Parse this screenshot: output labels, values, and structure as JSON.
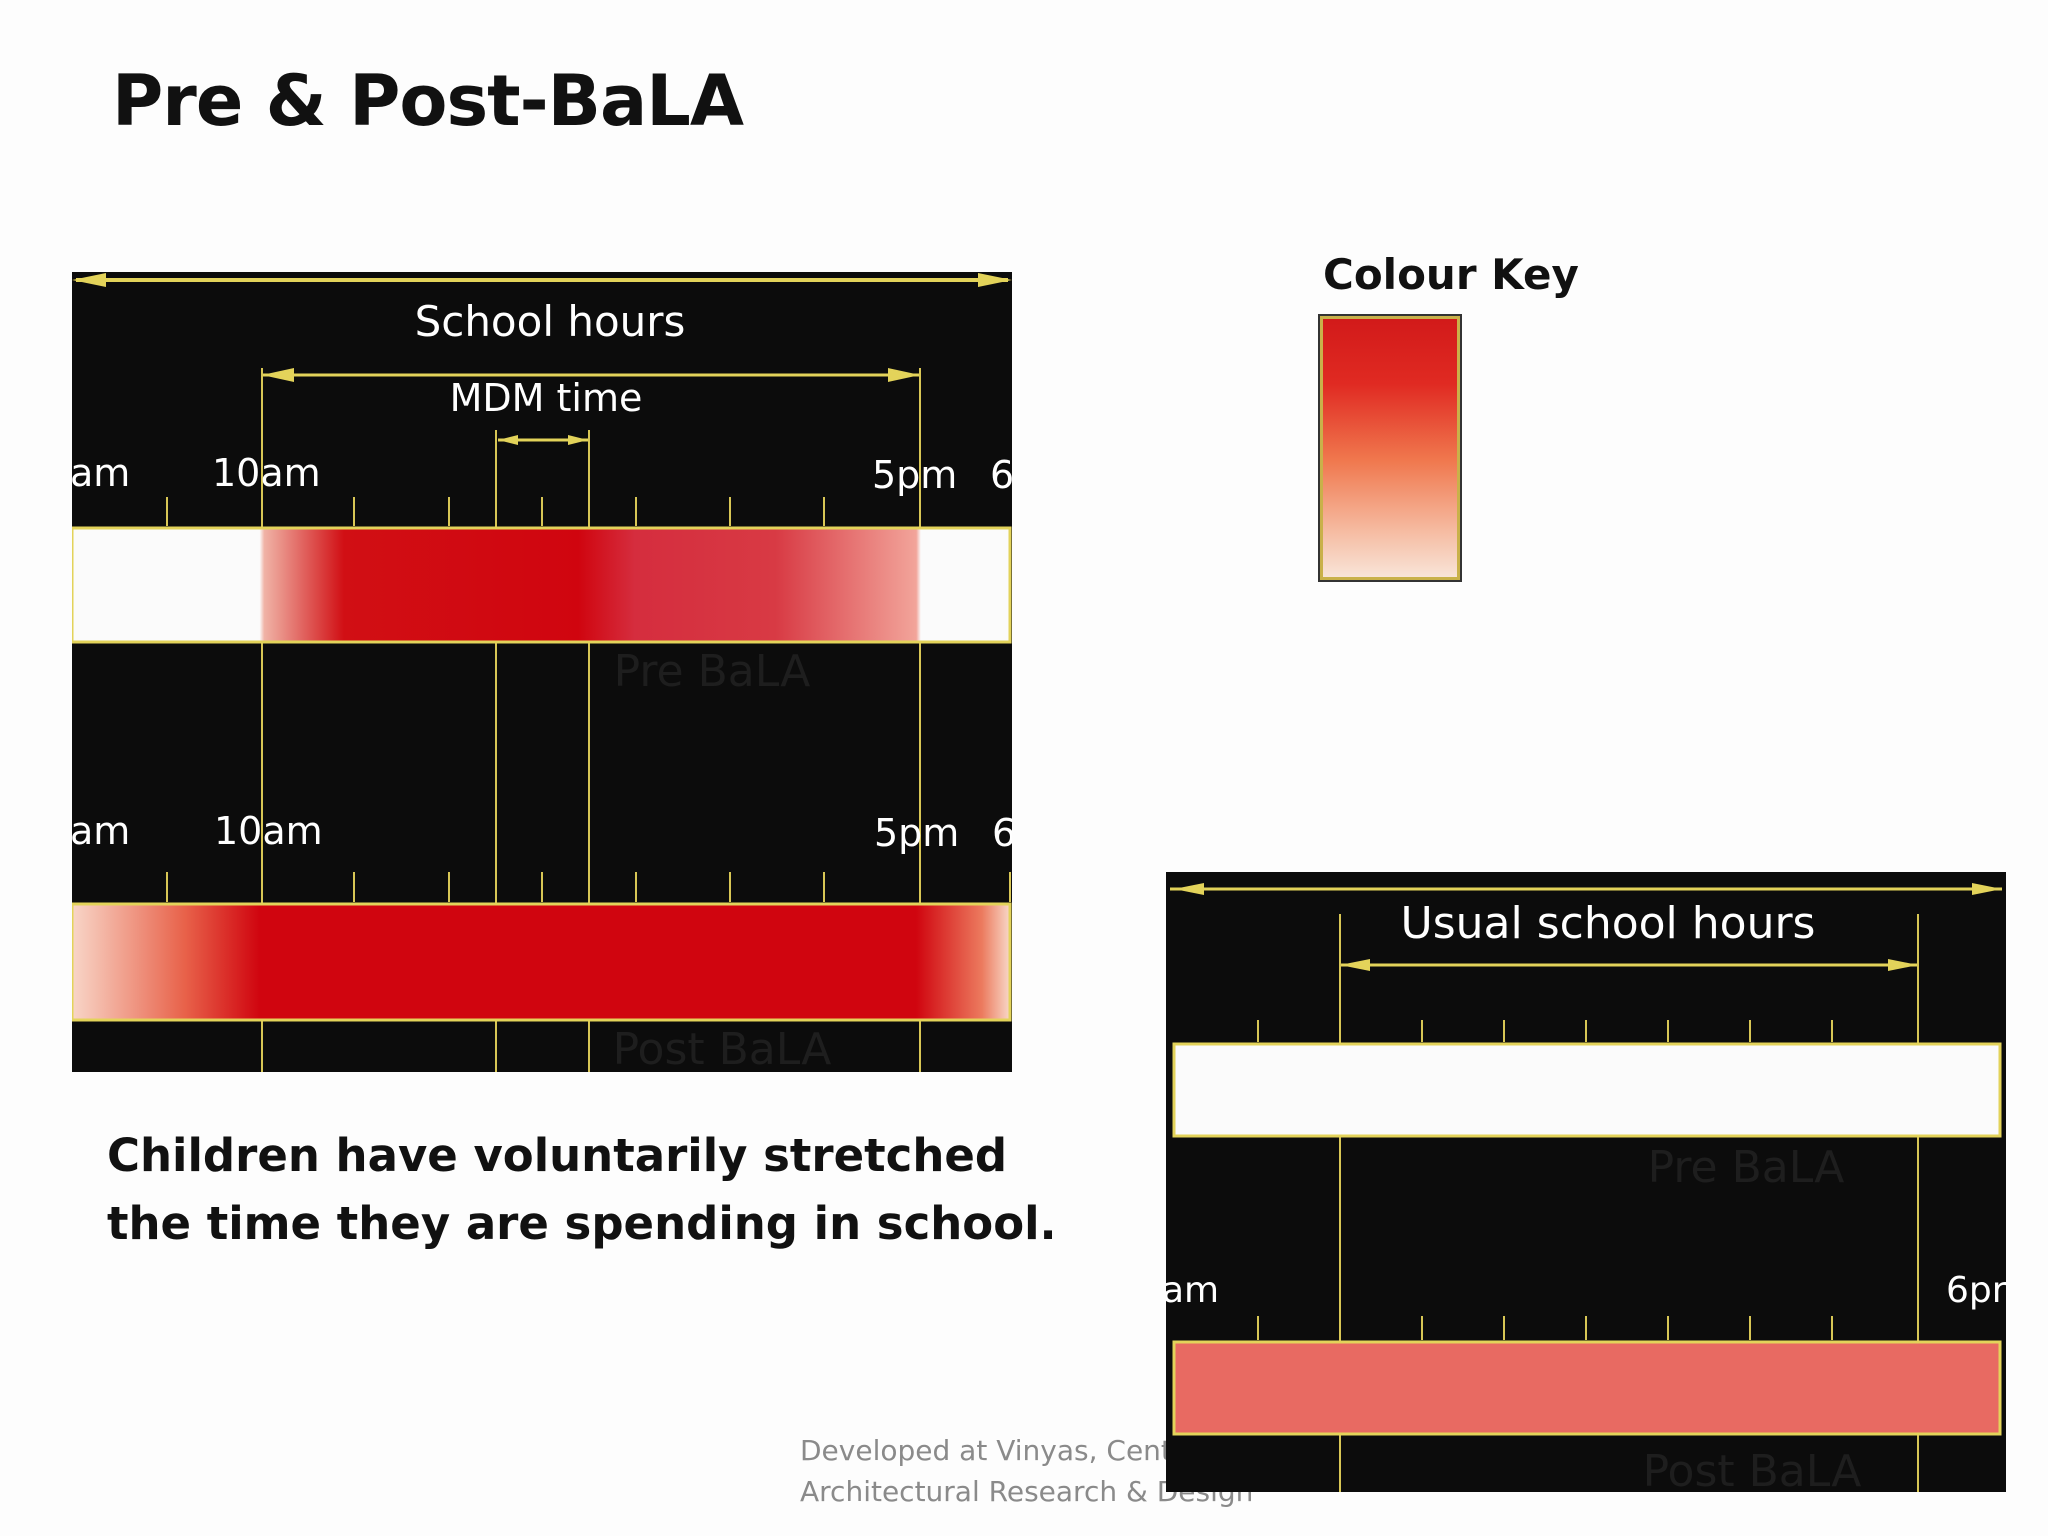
{
  "title": "Pre & Post-BaLA",
  "colour_key": {
    "title": "Colour Key"
  },
  "diagram1": {
    "school_hours": "School hours",
    "mdm_time": "MDM time",
    "top_labels": [
      "am",
      "10am",
      "5pm",
      "6"
    ],
    "pre_label": "Pre BaLA",
    "post_label": "Post BaLA"
  },
  "diagram2": {
    "usual_hours": "Usual school hours",
    "left_label": "am",
    "right_label": "6pr",
    "pre_label": "Pre BaLA",
    "post_label": "Post BaLA"
  },
  "caption": "Children have voluntarily stretched the time they are spending in school.",
  "credit": "Developed at Vinyas, Centre for Architectural Research & Design",
  "colors": {
    "background": "#0c0c0c",
    "accent_yellow": "#e3d35a",
    "red": "#d0050f",
    "salmon": "#e86a62"
  }
}
